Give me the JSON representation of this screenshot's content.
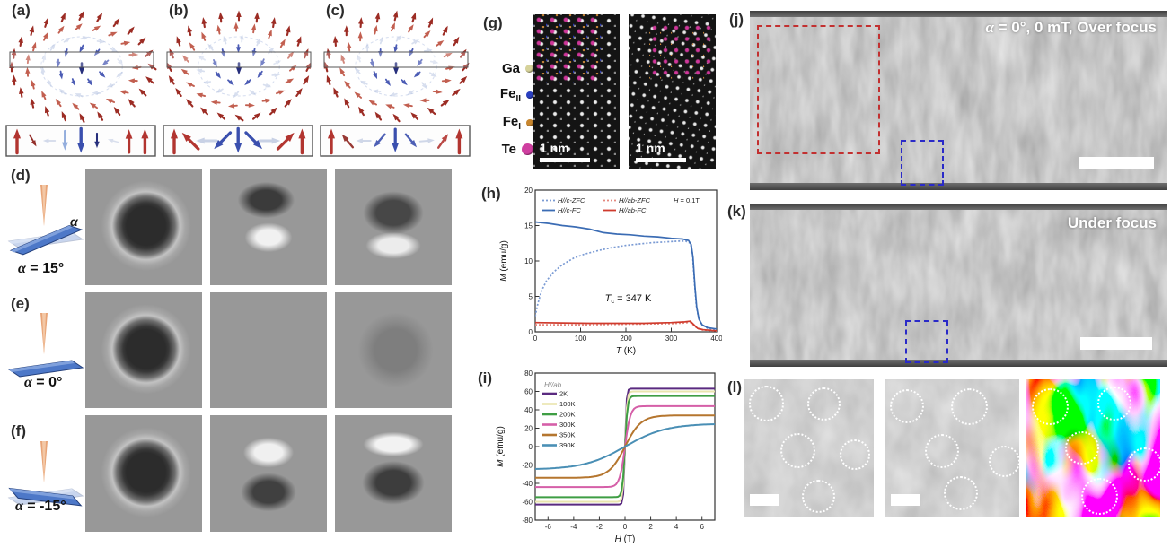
{
  "arrow_colors": {
    "red": "#b23530",
    "darkred": "#8e241f",
    "lightblue": "#94aedd",
    "blue": "#3a4fae",
    "navy": "#272f7c",
    "faint": "#bcc7e0"
  },
  "panels_abc": [
    {
      "label": "(a)",
      "mode": "bloch",
      "bottom_arrows": [
        {
          "a": 0,
          "c": "red",
          "s": 1,
          "o": 1
        },
        {
          "a": 150,
          "c": "darkred",
          "s": 0.55,
          "o": 0.95
        },
        {
          "a": -90,
          "c": "faint",
          "s": 0.5,
          "o": 0.65
        },
        {
          "a": 180,
          "c": "lightblue",
          "s": 0.8,
          "o": 1
        },
        {
          "a": 180,
          "c": "blue",
          "s": 1,
          "o": 1
        },
        {
          "a": 180,
          "c": "navy",
          "s": 0.6,
          "o": 1
        },
        {
          "a": -75,
          "c": "faint",
          "s": 0.45,
          "o": 0.55
        },
        {
          "a": 0,
          "c": "red",
          "s": 0.95,
          "o": 1
        },
        {
          "a": 0,
          "c": "red",
          "s": 1,
          "o": 1
        }
      ]
    },
    {
      "label": "(b)",
      "mode": "neel",
      "bottom_arrows": [
        {
          "a": 0,
          "c": "red",
          "s": 1,
          "o": 1
        },
        {
          "a": -45,
          "c": "red",
          "s": 0.95,
          "o": 1
        },
        {
          "a": -90,
          "c": "faint",
          "s": 0.85,
          "o": 0.8
        },
        {
          "a": -135,
          "c": "blue",
          "s": 0.95,
          "o": 1
        },
        {
          "a": 180,
          "c": "blue",
          "s": 1,
          "o": 1
        },
        {
          "a": 135,
          "c": "blue",
          "s": 0.95,
          "o": 1
        },
        {
          "a": 90,
          "c": "faint",
          "s": 0.85,
          "o": 0.8
        },
        {
          "a": 45,
          "c": "red",
          "s": 0.95,
          "o": 1
        },
        {
          "a": 0,
          "c": "red",
          "s": 1,
          "o": 1
        }
      ]
    },
    {
      "label": "(c)",
      "mode": "hybrid",
      "bottom_arrows": [
        {
          "a": 0,
          "c": "red",
          "s": 1,
          "o": 1
        },
        {
          "a": -40,
          "c": "darkred",
          "s": 0.7,
          "o": 0.9
        },
        {
          "a": -90,
          "c": "faint",
          "s": 0.6,
          "o": 0.7
        },
        {
          "a": -140,
          "c": "blue",
          "s": 0.7,
          "o": 0.9
        },
        {
          "a": 180,
          "c": "blue",
          "s": 0.95,
          "o": 1
        },
        {
          "a": 140,
          "c": "blue",
          "s": 0.7,
          "o": 0.9
        },
        {
          "a": 85,
          "c": "faint",
          "s": 0.6,
          "o": 0.7
        },
        {
          "a": 35,
          "c": "red",
          "s": 0.7,
          "o": 0.9
        },
        {
          "a": 0,
          "c": "red",
          "s": 1,
          "o": 1
        }
      ]
    }
  ],
  "panels_def": [
    {
      "label": "(d)",
      "alpha_text": "α = 15°",
      "tilt": -15,
      "alpha_mark": "α"
    },
    {
      "label": "(e)",
      "alpha_text": "α = 0°",
      "tilt": 0,
      "alpha_mark": ""
    },
    {
      "label": "(f)",
      "alpha_text": "α = -15°",
      "tilt": 15,
      "alpha_mark": ""
    }
  ],
  "ltem_grid": {
    "cell_classes": [
      "sim-cell sim-disk-ring",
      "sim-cell sim-dark-top-bright-bottom",
      "sim-cell sim-ring-bright-bottom",
      "sim-cell sim-disk-ring",
      "sim-cell sim-uniform",
      "sim-cell sim-faint-disk",
      "sim-cell sim-disk-ring",
      "sim-cell sim-bright-top-dark-bottom",
      "sim-cell sim-bright-crescent-dark-bottom"
    ]
  },
  "panel_g": {
    "label": "(g)",
    "legend": [
      {
        "base": "Ga",
        "sub": "",
        "color": "#d6d29a",
        "size": 9
      },
      {
        "base": "Fe",
        "sub": "II",
        "color": "#2a3fc0",
        "size": 8
      },
      {
        "base": "Fe",
        "sub": "I",
        "color": "#c8862e",
        "size": 8
      },
      {
        "base": "Te",
        "sub": "",
        "color": "#cf3fa0",
        "size": 13
      }
    ],
    "images": [
      {
        "scale_label": "1 nm"
      },
      {
        "scale_label": "1 nm"
      }
    ]
  },
  "chart_data": [
    {
      "id": "h",
      "panel_label": "(h)",
      "type": "line",
      "xlabel_italic": "T",
      "xlabel_rest": " (K)",
      "ylabel_italic": "M",
      "ylabel_rest": " (emu/g)",
      "xlim": [
        0,
        400
      ],
      "ylim": [
        0,
        20
      ],
      "xticks": [
        0,
        100,
        200,
        300,
        400
      ],
      "yticks": [
        0,
        5,
        10,
        15,
        20
      ],
      "note_italic": "H",
      "note_rest": " = 0.1T",
      "annotation": {
        "pre": "T",
        "sub": "c",
        "post": " = 347 K",
        "x": 205,
        "y": 4.3
      },
      "legend_position": "top-inside",
      "grid": false,
      "series": [
        {
          "name": "H//c-ZFC",
          "color": "#7b9bd4",
          "dash": true,
          "points": [
            [
              0,
              2.2
            ],
            [
              6,
              4.0
            ],
            [
              14,
              5.8
            ],
            [
              25,
              7.2
            ],
            [
              40,
              8.4
            ],
            [
              60,
              9.5
            ],
            [
              85,
              10.4
            ],
            [
              110,
              11.0
            ],
            [
              140,
              11.5
            ],
            [
              170,
              11.9
            ],
            [
              200,
              12.2
            ],
            [
              230,
              12.4
            ],
            [
              260,
              12.6
            ],
            [
              290,
              12.7
            ],
            [
              315,
              12.8
            ],
            [
              332,
              12.8
            ],
            [
              342,
              12.5
            ],
            [
              347,
              11.0
            ],
            [
              351,
              7.0
            ],
            [
              355,
              3.8
            ],
            [
              360,
              2.0
            ],
            [
              368,
              1.0
            ],
            [
              380,
              0.5
            ],
            [
              400,
              0.3
            ]
          ]
        },
        {
          "name": "H//ab-ZFC",
          "color": "#e4887e",
          "dash": true,
          "points": [
            [
              0,
              1.0
            ],
            [
              60,
              1.0
            ],
            [
              120,
              1.0
            ],
            [
              180,
              1.05
            ],
            [
              240,
              1.1
            ],
            [
              300,
              1.15
            ],
            [
              330,
              1.25
            ],
            [
              342,
              1.35
            ],
            [
              350,
              0.9
            ],
            [
              358,
              0.45
            ],
            [
              370,
              0.25
            ],
            [
              400,
              0.1
            ]
          ]
        },
        {
          "name": "H//c-FC",
          "color": "#3b6cb4",
          "dash": false,
          "points": [
            [
              0,
              15.5
            ],
            [
              30,
              15.3
            ],
            [
              60,
              15.0
            ],
            [
              90,
              14.8
            ],
            [
              120,
              14.5
            ],
            [
              150,
              14.0
            ],
            [
              180,
              13.8
            ],
            [
              210,
              13.7
            ],
            [
              240,
              13.5
            ],
            [
              270,
              13.4
            ],
            [
              300,
              13.2
            ],
            [
              325,
              13.1
            ],
            [
              338,
              12.9
            ],
            [
              344,
              12.3
            ],
            [
              348,
              10.5
            ],
            [
              352,
              6.5
            ],
            [
              356,
              3.5
            ],
            [
              361,
              1.8
            ],
            [
              368,
              1.0
            ],
            [
              380,
              0.6
            ],
            [
              400,
              0.4
            ]
          ]
        },
        {
          "name": "H//ab-FC",
          "color": "#cf3b2d",
          "dash": false,
          "points": [
            [
              0,
              1.3
            ],
            [
              60,
              1.25
            ],
            [
              120,
              1.2
            ],
            [
              180,
              1.2
            ],
            [
              240,
              1.2
            ],
            [
              300,
              1.3
            ],
            [
              330,
              1.4
            ],
            [
              342,
              1.5
            ],
            [
              350,
              1.0
            ],
            [
              358,
              0.5
            ],
            [
              370,
              0.3
            ],
            [
              400,
              0.15
            ]
          ]
        }
      ]
    },
    {
      "id": "i",
      "panel_label": "(i)",
      "type": "line",
      "legend_title": "H//ab",
      "xlabel_italic": "H",
      "xlabel_rest": " (T)",
      "ylabel_italic": "M",
      "ylabel_rest": " (emu/g)",
      "xlim": [
        -7,
        7
      ],
      "ylim": [
        -80,
        80
      ],
      "xticks": [
        -6,
        -4,
        -2,
        0,
        2,
        4,
        6
      ],
      "yticks": [
        -80,
        -60,
        -40,
        -20,
        0,
        20,
        40,
        60,
        80
      ],
      "legend_position": "left-inside",
      "grid": false,
      "series": [
        {
          "name": "2K",
          "color": "#5a2a80",
          "saturation_M": 63,
          "transition_width_T": 0.12
        },
        {
          "name": "100K",
          "color": "#e9e5ae",
          "saturation_M": 60,
          "transition_width_T": 0.16
        },
        {
          "name": "200K",
          "color": "#3f9e44",
          "saturation_M": 55,
          "transition_width_T": 0.2
        },
        {
          "name": "300K",
          "color": "#d55fa8",
          "saturation_M": 44,
          "transition_width_T": 0.42
        },
        {
          "name": "350K",
          "color": "#b5762f",
          "saturation_M": 34,
          "transition_width_T": 1.25
        },
        {
          "name": "390K",
          "color": "#4a8fb5",
          "saturation_M": 25,
          "transition_width_T": 3.2
        }
      ]
    }
  ],
  "panel_j": {
    "label": "(j)",
    "caption_italic": "α",
    "caption_rest": " = 0°, 0 mT, Over focus"
  },
  "panel_k": {
    "label": "(k)",
    "caption": "Under focus"
  },
  "panel_l": {
    "label": "(l)",
    "images": [
      {
        "type": "gray",
        "scalebar": true,
        "circles": [
          [
            0.18,
            0.18,
            0.14
          ],
          [
            0.62,
            0.18,
            0.13
          ],
          [
            0.42,
            0.52,
            0.14
          ],
          [
            0.86,
            0.55,
            0.12
          ],
          [
            0.58,
            0.85,
            0.13
          ]
        ]
      },
      {
        "type": "gray",
        "scalebar": true,
        "circles": [
          [
            0.17,
            0.2,
            0.13
          ],
          [
            0.63,
            0.2,
            0.14
          ],
          [
            0.43,
            0.52,
            0.13
          ],
          [
            0.89,
            0.6,
            0.12
          ],
          [
            0.57,
            0.83,
            0.13
          ]
        ]
      },
      {
        "type": "color",
        "scalebar": false,
        "circles": [
          [
            0.18,
            0.2,
            0.14
          ],
          [
            0.66,
            0.18,
            0.13
          ],
          [
            0.42,
            0.5,
            0.13
          ],
          [
            0.89,
            0.62,
            0.13
          ],
          [
            0.55,
            0.85,
            0.14
          ]
        ]
      }
    ]
  }
}
